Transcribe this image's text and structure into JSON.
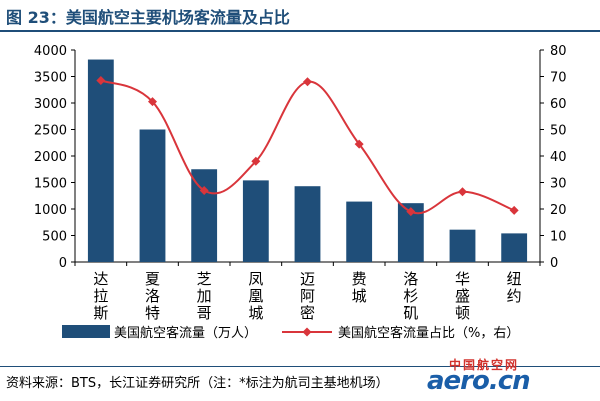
{
  "figure": {
    "title": "图 23：美国航空主要机场客流量及占比",
    "source": "资料来源：BTS，长江证券研究所（注：*标注为航司主基地机场）"
  },
  "watermark": {
    "site_name": "中国航空网",
    "logo_text": "aero.cn"
  },
  "colors": {
    "bar": "#1f4e79",
    "line": "#d9353b",
    "title": "#1f4e79"
  },
  "chart_data": {
    "type": "bar",
    "categories": [
      "达拉斯",
      "夏洛特",
      "芝加哥",
      "凤凰城",
      "迈阿密",
      "费城",
      "洛杉矶",
      "华盛顿",
      "纽约"
    ],
    "series": [
      {
        "name": "美国航空客流量（万人）",
        "type": "bar",
        "axis": "left",
        "values": [
          3820,
          2500,
          1750,
          1540,
          1430,
          1140,
          1110,
          610,
          540
        ]
      },
      {
        "name": "美国航空客流量占比（%，右）",
        "type": "line",
        "axis": "right",
        "values": [
          68.5,
          60.5,
          27,
          38,
          68,
          44.5,
          19,
          26.5,
          19.5
        ]
      }
    ],
    "y_left": {
      "min": 0,
      "max": 4000,
      "ticks": [
        0,
        500,
        1000,
        1500,
        2000,
        2500,
        3000,
        3500,
        4000
      ]
    },
    "y_right": {
      "min": 0,
      "max": 80,
      "ticks": [
        0,
        10,
        20,
        30,
        40,
        50,
        60,
        70,
        80
      ]
    },
    "grid": false,
    "legend_position": "bottom"
  }
}
